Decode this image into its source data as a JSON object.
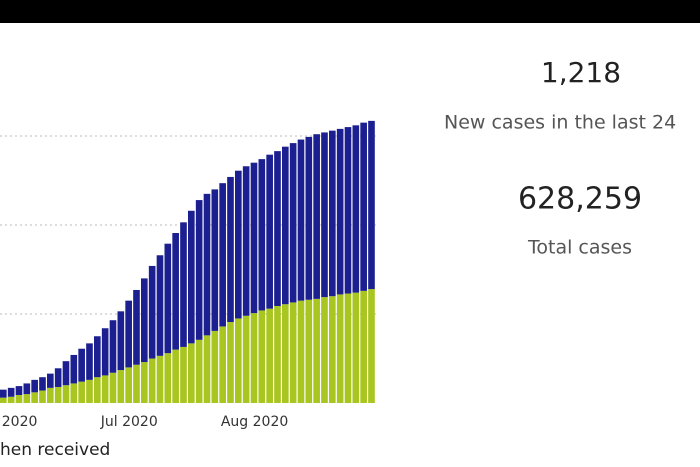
{
  "chart_data": {
    "type": "bar",
    "stacked": true,
    "categories": [
      null,
      null,
      "2020",
      null,
      null,
      null,
      null,
      null,
      null,
      null,
      null,
      null,
      null,
      null,
      null,
      null,
      "Jul 2020",
      null,
      null,
      null,
      null,
      null,
      null,
      null,
      null,
      null,
      null,
      null,
      null,
      null,
      null,
      null,
      "Aug 2020",
      null,
      null,
      null,
      null,
      null,
      null,
      null,
      null,
      null,
      null,
      null,
      null,
      null,
      null,
      null
    ],
    "series": [
      {
        "color": "#a8c520",
        "values": [
          6,
          7,
          9,
          10,
          12,
          14,
          17,
          18,
          20,
          22,
          24,
          26,
          29,
          31,
          34,
          37,
          40,
          43,
          46,
          50,
          53,
          56,
          60,
          63,
          67,
          71,
          76,
          81,
          86,
          91,
          95,
          98,
          101,
          104,
          106,
          109,
          111,
          113,
          115,
          116,
          117,
          119,
          120,
          122,
          123,
          124,
          126,
          128
        ]
      },
      {
        "color": "#1b1f8f",
        "values": [
          9,
          10,
          10,
          12,
          14,
          15,
          16,
          21,
          27,
          32,
          37,
          41,
          46,
          53,
          59,
          66,
          75,
          84,
          94,
          104,
          113,
          123,
          131,
          140,
          149,
          157,
          159,
          159,
          161,
          163,
          166,
          168,
          169,
          170,
          173,
          174,
          177,
          179,
          181,
          183,
          185,
          185,
          186,
          186,
          187,
          188,
          189,
          189
        ]
      }
    ],
    "ylim": [
      0,
      400
    ],
    "yticks": [
      100,
      200,
      300
    ],
    "grid": true,
    "caption": "hen received"
  },
  "kpis": [
    {
      "value": "1,218",
      "label": "New cases in the last 24"
    },
    {
      "value": "628,259",
      "label": "Total cases"
    }
  ]
}
